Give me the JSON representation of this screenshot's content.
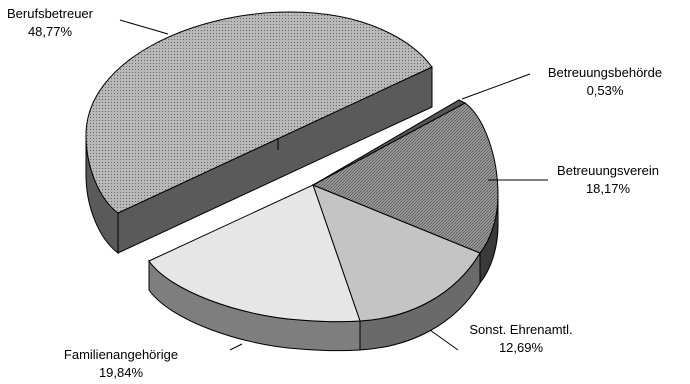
{
  "chart_data": {
    "type": "pie",
    "title": "",
    "exploded": [
      "Berufsbetreuer"
    ],
    "slices": [
      {
        "label": "Berufsbetreuer",
        "value": 48.77,
        "value_label": "48,77%",
        "color": "#b4b4b4",
        "side": "#5a5a5a"
      },
      {
        "label": "Betreuungsbehörde",
        "value": 0.53,
        "value_label": "0,53%",
        "color": "#6e6e6e",
        "side": "#3c3c3c"
      },
      {
        "label": "Betreuungsverein",
        "value": 18.17,
        "value_label": "18,17%",
        "color": "#9a9a9a",
        "side": "#4a4a4a"
      },
      {
        "label": "Sonst. Ehrenamtl.",
        "value": 12.69,
        "value_label": "12,69%",
        "color": "#c4c4c4",
        "side": "#6a6a6a"
      },
      {
        "label": "Familienangehörige",
        "value": 19.84,
        "value_label": "19,84%",
        "color": "#e6e6e6",
        "side": "#7e7e7e"
      }
    ]
  }
}
